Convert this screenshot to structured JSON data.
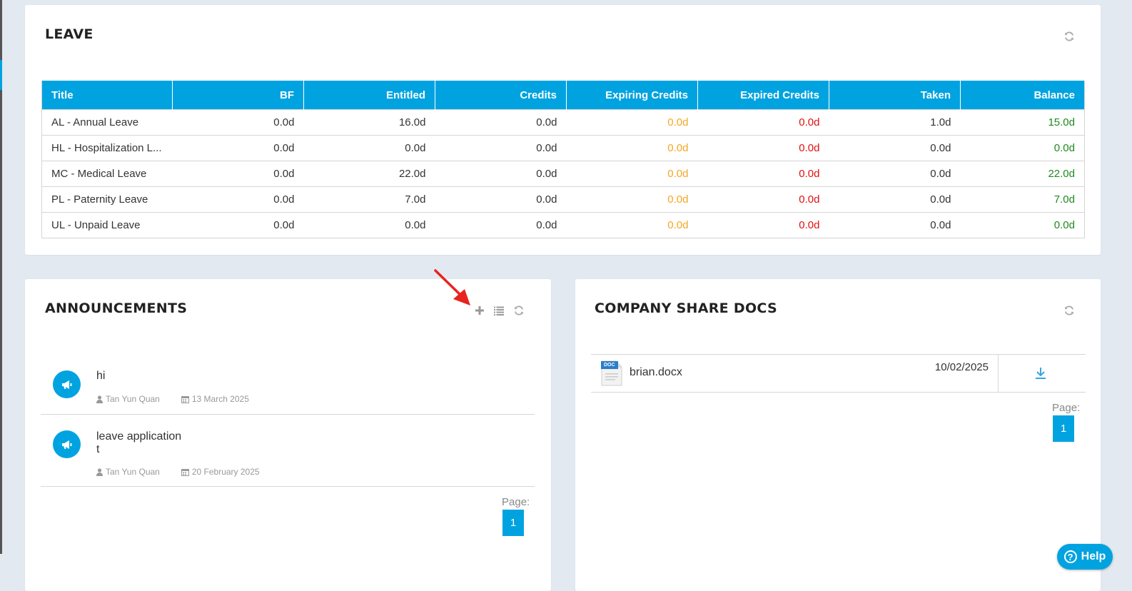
{
  "leave": {
    "title": "LEAVE",
    "columns": [
      "Title",
      "BF",
      "Entitled",
      "Credits",
      "Expiring Credits",
      "Expired Credits",
      "Taken",
      "Balance"
    ],
    "rows": [
      [
        "AL - Annual Leave",
        "0.0d",
        "16.0d",
        "0.0d",
        "0.0d",
        "0.0d",
        "1.0d",
        "15.0d"
      ],
      [
        "HL - Hospitalization L...",
        "0.0d",
        "0.0d",
        "0.0d",
        "0.0d",
        "0.0d",
        "0.0d",
        "0.0d"
      ],
      [
        "MC - Medical Leave",
        "0.0d",
        "22.0d",
        "0.0d",
        "0.0d",
        "0.0d",
        "0.0d",
        "22.0d"
      ],
      [
        "PL - Paternity Leave",
        "0.0d",
        "7.0d",
        "0.0d",
        "0.0d",
        "0.0d",
        "0.0d",
        "7.0d"
      ],
      [
        "UL - Unpaid Leave",
        "0.0d",
        "0.0d",
        "0.0d",
        "0.0d",
        "0.0d",
        "0.0d",
        "0.0d"
      ]
    ],
    "colors": {
      "expiring": "#f5a623",
      "expired": "#e01010",
      "balance": "#1e8a1e"
    }
  },
  "announcements": {
    "title": "ANNOUNCEMENTS",
    "items": [
      {
        "title": "hi",
        "author": "Tan Yun Quan",
        "date": "13 March 2025"
      },
      {
        "title": "leave application\nt",
        "author": "Tan Yun Quan",
        "date": "20 February 2025"
      }
    ],
    "page_label": "Page:",
    "page": "1"
  },
  "docs": {
    "title": "COMPANY SHARE DOCS",
    "files": [
      {
        "name": "brian.docx",
        "date": "10/02/2025",
        "icon_label": "DOC"
      }
    ],
    "page_label": "Page:",
    "page": "1"
  },
  "help": {
    "label": "Help"
  },
  "accent_color": "#00a3e0"
}
